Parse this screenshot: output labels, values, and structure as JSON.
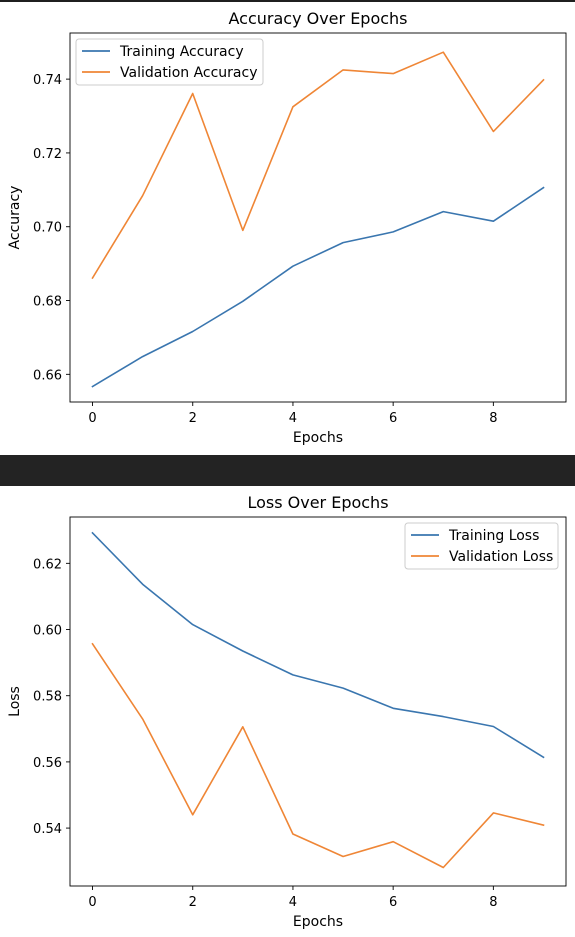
{
  "chart_data": [
    {
      "type": "line",
      "title": "Accuracy Over Epochs",
      "xlabel": "Epochs",
      "ylabel": "Accuracy",
      "xlim": [
        -0.45,
        9.45
      ],
      "ylim": [
        0.6525,
        0.7525
      ],
      "xticks": [
        0,
        2,
        4,
        6,
        8
      ],
      "yticks": [
        0.66,
        0.68,
        0.7,
        0.72,
        0.74
      ],
      "ytick_decimals": 2,
      "x": [
        0,
        1,
        2,
        3,
        4,
        5,
        6,
        7,
        8,
        9
      ],
      "grid": false,
      "legend_position": "top-left",
      "series": [
        {
          "name": "Training Accuracy",
          "color": "#3a76af",
          "values": [
            0.6567,
            0.6648,
            0.6716,
            0.6798,
            0.6893,
            0.6957,
            0.6986,
            0.7041,
            0.7015,
            0.7106
          ]
        },
        {
          "name": "Validation Accuracy",
          "color": "#ef8636",
          "values": [
            0.6861,
            0.7084,
            0.7361,
            0.699,
            0.7325,
            0.7425,
            0.7415,
            0.7473,
            0.7258,
            0.7398
          ]
        }
      ]
    },
    {
      "type": "line",
      "title": "Loss Over Epochs",
      "xlabel": "Epochs",
      "ylabel": "Loss",
      "xlim": [
        -0.45,
        9.45
      ],
      "ylim": [
        0.5225,
        0.634
      ],
      "xticks": [
        0,
        2,
        4,
        6,
        8
      ],
      "yticks": [
        0.54,
        0.56,
        0.58,
        0.6,
        0.62
      ],
      "ytick_decimals": 2,
      "x": [
        0,
        1,
        2,
        3,
        4,
        5,
        6,
        7,
        8,
        9
      ],
      "grid": false,
      "legend_position": "top-right",
      "series": [
        {
          "name": "Training Loss",
          "color": "#3a76af",
          "values": [
            0.6292,
            0.6137,
            0.6015,
            0.5935,
            0.5863,
            0.5823,
            0.5762,
            0.5737,
            0.5707,
            0.5614
          ]
        },
        {
          "name": "Validation Loss",
          "color": "#ef8636",
          "values": [
            0.5957,
            0.573,
            0.544,
            0.5706,
            0.5382,
            0.5314,
            0.5359,
            0.5281,
            0.5446,
            0.5409
          ]
        }
      ]
    }
  ]
}
